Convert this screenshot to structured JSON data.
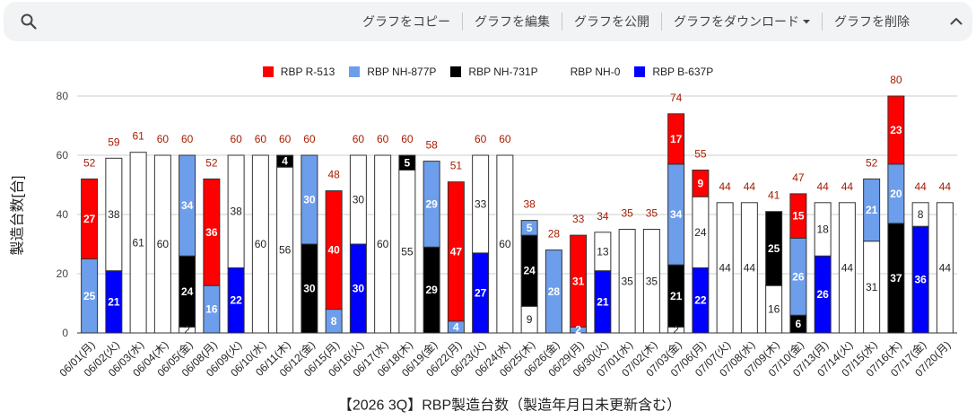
{
  "toolbar": {
    "search_icon": "search-icon",
    "actions": [
      {
        "label": "グラフをコピー"
      },
      {
        "label": "グラフを編集"
      },
      {
        "label": "グラフを公開"
      },
      {
        "label": "グラフをダウンロード",
        "icon": "caret-down-icon"
      },
      {
        "label": "グラフを削除"
      }
    ],
    "collapse_icon": "chevron-up-icon"
  },
  "chart_data": {
    "type": "bar",
    "stacked": true,
    "xlabel": "【2026 3Q】RBP製造台数（製造年月日未更新含む）",
    "ylabel": "製造台数[台]",
    "ylim": [
      0,
      80
    ],
    "yticks": [
      0,
      20,
      40,
      60,
      80
    ],
    "grid": true,
    "legend_position": "top",
    "data_labels": true,
    "total_label_color": "#a61c00",
    "categories": [
      "06/01(月)",
      "06/02(火)",
      "06/03(水)",
      "06/04(木)",
      "06/05(金)",
      "06/08(月)",
      "06/09(火)",
      "06/10(水)",
      "06/11(木)",
      "06/12(金)",
      "06/15(月)",
      "06/16(火)",
      "06/17(水)",
      "06/18(木)",
      "06/19(金)",
      "06/22(月)",
      "06/23(火)",
      "06/24(水)",
      "06/25(木)",
      "06/26(金)",
      "06/29(月)",
      "06/30(火)",
      "07/01(水)",
      "07/02(木)",
      "07/03(金)",
      "07/06(月)",
      "07/07(火)",
      "07/08(水)",
      "07/09(木)",
      "07/10(金)",
      "07/13(月)",
      "07/14(火)",
      "07/15(水)",
      "07/16(木)",
      "07/17(金)",
      "07/20(月)"
    ],
    "series": [
      {
        "name": "RBP R-513",
        "color": "#ff0000",
        "values": [
          27,
          0,
          0,
          0,
          0,
          36,
          0,
          0,
          0,
          0,
          40,
          0,
          0,
          0,
          0,
          47,
          0,
          0,
          0,
          0,
          31,
          0,
          0,
          0,
          17,
          9,
          0,
          0,
          0,
          15,
          0,
          0,
          0,
          23,
          0,
          0
        ]
      },
      {
        "name": "RBP NH-877P",
        "color": "#6d9eeb",
        "values": [
          25,
          0,
          0,
          0,
          34,
          16,
          0,
          0,
          0,
          30,
          8,
          0,
          0,
          0,
          29,
          4,
          0,
          0,
          5,
          28,
          2,
          0,
          0,
          0,
          34,
          0,
          0,
          0,
          0,
          26,
          0,
          0,
          21,
          20,
          0,
          0
        ]
      },
      {
        "name": "RBP NH-731P",
        "color": "#000000",
        "values": [
          0,
          0,
          0,
          0,
          24,
          0,
          0,
          0,
          4,
          30,
          0,
          0,
          0,
          5,
          29,
          0,
          0,
          0,
          24,
          0,
          0,
          0,
          0,
          0,
          21,
          0,
          0,
          0,
          25,
          6,
          0,
          0,
          0,
          37,
          0,
          0
        ]
      },
      {
        "name": "RBP NH-0",
        "color": "#ffffff",
        "values": [
          0,
          38,
          61,
          60,
          2,
          0,
          38,
          60,
          56,
          0,
          0,
          30,
          60,
          55,
          0,
          0,
          33,
          60,
          9,
          0,
          0,
          13,
          35,
          35,
          2,
          24,
          44,
          44,
          16,
          0,
          18,
          44,
          31,
          0,
          8,
          44
        ]
      },
      {
        "name": "RBP B-637P",
        "color": "#0000ff",
        "values": [
          0,
          21,
          0,
          0,
          0,
          0,
          22,
          0,
          0,
          0,
          0,
          30,
          0,
          0,
          0,
          0,
          27,
          0,
          0,
          0,
          0,
          21,
          0,
          0,
          0,
          22,
          0,
          0,
          0,
          0,
          26,
          0,
          0,
          0,
          36,
          0
        ]
      }
    ],
    "totals": [
      52,
      59,
      61,
      60,
      60,
      52,
      60,
      60,
      60,
      60,
      48,
      60,
      60,
      60,
      58,
      51,
      60,
      60,
      38,
      28,
      33,
      34,
      35,
      35,
      74,
      55,
      44,
      44,
      41,
      47,
      44,
      44,
      52,
      80,
      44,
      44
    ]
  }
}
